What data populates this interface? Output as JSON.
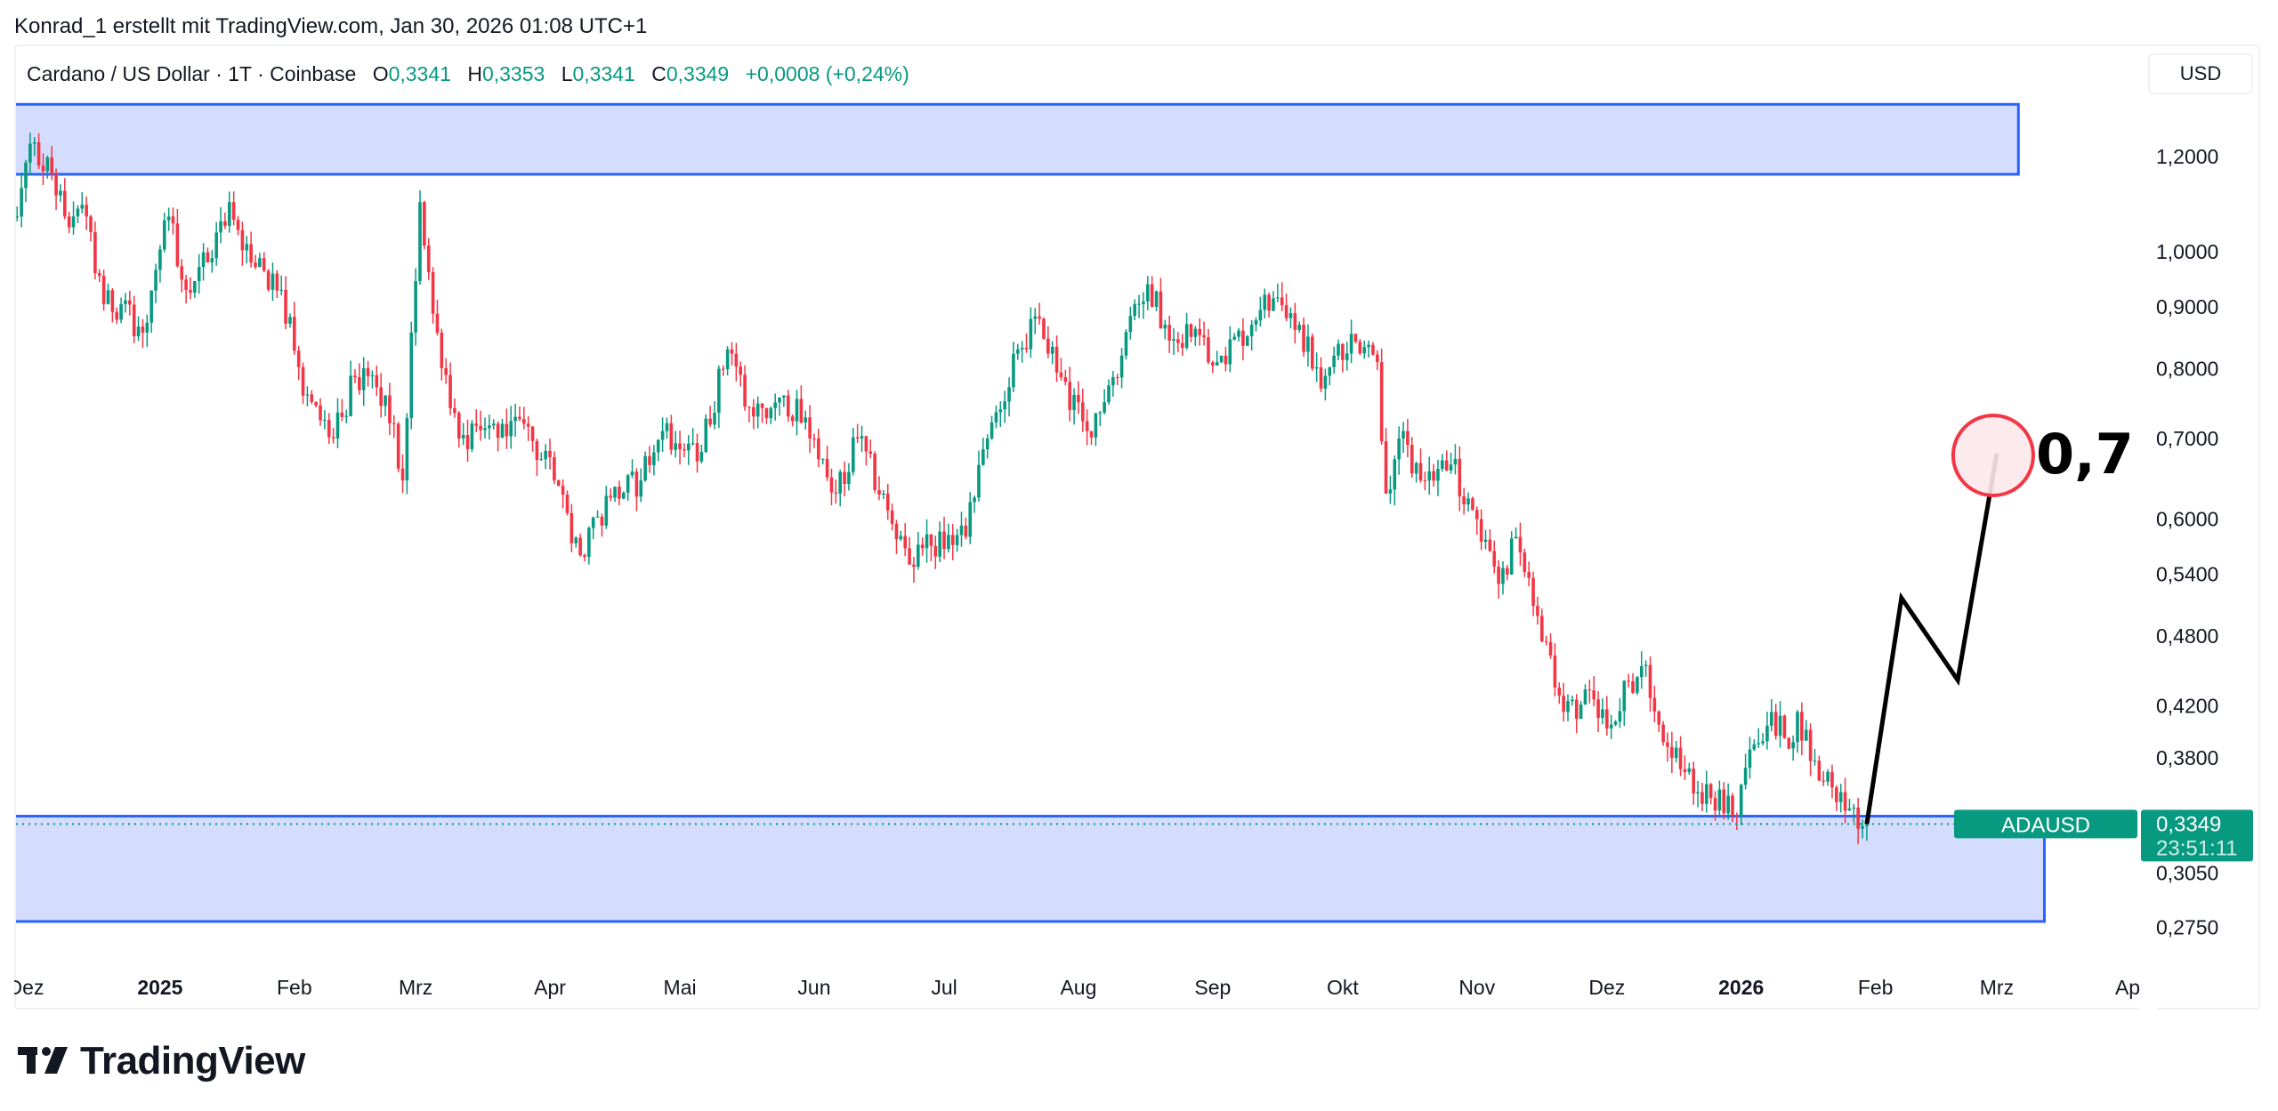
{
  "caption": "Konrad_1 erstellt mit TradingView.com, Jan 30, 2026 01:08 UTC+1",
  "legend": {
    "symbol": "Cardano / US Dollar · 1T · Coinbase",
    "o_label": "O",
    "o": "0,3341",
    "h_label": "H",
    "h": "0,3353",
    "l_label": "L",
    "l": "0,3341",
    "c_label": "C",
    "c": "0,3349",
    "change": "+0,0008 (+0,24%)"
  },
  "currency_button": "USD",
  "logo_text": "TradingView",
  "colors": {
    "up": "#089981",
    "down": "#f23645",
    "zone_fill": "#d4ddfd",
    "zone_border": "#2962ff",
    "target_circle": "#f23645",
    "target_fill": "#fde8eb",
    "path": "#000000"
  },
  "chart_data": {
    "type": "candlestick",
    "symbol": "ADAUSD",
    "interval": "1T",
    "scale": "log",
    "ylim": [
      0.265,
      1.4
    ],
    "xlim": [
      "2024-11-28",
      "2026-04-04"
    ],
    "grid": false,
    "y_ticks": [
      {
        "value": 1.2,
        "label": "1,2000"
      },
      {
        "value": 1.0,
        "label": "1,0000"
      },
      {
        "value": 0.9,
        "label": "0,9000"
      },
      {
        "value": 0.8,
        "label": "0,8000"
      },
      {
        "value": 0.7,
        "label": "0,7000"
      },
      {
        "value": 0.6,
        "label": "0,6000"
      },
      {
        "value": 0.54,
        "label": "0,5400"
      },
      {
        "value": 0.48,
        "label": "0,4800"
      },
      {
        "value": 0.42,
        "label": "0,4200"
      },
      {
        "value": 0.38,
        "label": "0,3800"
      },
      {
        "value": 0.305,
        "label": "0,3050"
      },
      {
        "value": 0.275,
        "label": "0,2750"
      }
    ],
    "x_ticks": [
      {
        "date": "2024-12-01",
        "label": "Dez",
        "bold": false
      },
      {
        "date": "2025-01-01",
        "label": "2025",
        "bold": true
      },
      {
        "date": "2025-02-01",
        "label": "Feb",
        "bold": false
      },
      {
        "date": "2025-03-01",
        "label": "Mrz",
        "bold": false
      },
      {
        "date": "2025-04-01",
        "label": "Apr",
        "bold": false
      },
      {
        "date": "2025-05-01",
        "label": "Mai",
        "bold": false
      },
      {
        "date": "2025-06-01",
        "label": "Jun",
        "bold": false
      },
      {
        "date": "2025-07-01",
        "label": "Jul",
        "bold": false
      },
      {
        "date": "2025-08-01",
        "label": "Aug",
        "bold": false
      },
      {
        "date": "2025-09-01",
        "label": "Sep",
        "bold": false
      },
      {
        "date": "2025-10-01",
        "label": "Okt",
        "bold": false
      },
      {
        "date": "2025-11-01",
        "label": "Nov",
        "bold": false
      },
      {
        "date": "2025-12-01",
        "label": "Dez",
        "bold": false
      },
      {
        "date": "2026-01-01",
        "label": "2026",
        "bold": true
      },
      {
        "date": "2026-02-01",
        "label": "Feb",
        "bold": false
      },
      {
        "date": "2026-03-01",
        "label": "Mrz",
        "bold": false
      },
      {
        "date": "2026-04-01",
        "label": "Apr",
        "bold": false
      }
    ],
    "close_path": [
      [
        "2024-11-29",
        1.07
      ],
      [
        "2024-12-02",
        1.23
      ],
      [
        "2024-12-07",
        1.16
      ],
      [
        "2024-12-10",
        1.07
      ],
      [
        "2024-12-15",
        1.07
      ],
      [
        "2024-12-19",
        0.905
      ],
      [
        "2024-12-23",
        0.905
      ],
      [
        "2024-12-28",
        0.857
      ],
      [
        "2025-01-03",
        1.07
      ],
      [
        "2025-01-07",
        0.93
      ],
      [
        "2025-01-12",
        0.98
      ],
      [
        "2025-01-17",
        1.1
      ],
      [
        "2025-01-22",
        0.98
      ],
      [
        "2025-01-29",
        0.93
      ],
      [
        "2025-02-03",
        0.76
      ],
      [
        "2025-02-10",
        0.7
      ],
      [
        "2025-02-15",
        0.787
      ],
      [
        "2025-02-22",
        0.76
      ],
      [
        "2025-02-26",
        0.646
      ],
      [
        "2025-03-02",
        1.1
      ],
      [
        "2025-03-06",
        0.857
      ],
      [
        "2025-03-11",
        0.7
      ],
      [
        "2025-03-19",
        0.72
      ],
      [
        "2025-03-26",
        0.72
      ],
      [
        "2025-04-02",
        0.646
      ],
      [
        "2025-04-08",
        0.56
      ],
      [
        "2025-04-15",
        0.625
      ],
      [
        "2025-04-22",
        0.646
      ],
      [
        "2025-04-27",
        0.71
      ],
      [
        "2025-05-05",
        0.67
      ],
      [
        "2025-05-12",
        0.83
      ],
      [
        "2025-05-18",
        0.73
      ],
      [
        "2025-05-25",
        0.76
      ],
      [
        "2025-06-01",
        0.7
      ],
      [
        "2025-06-06",
        0.63
      ],
      [
        "2025-06-11",
        0.7
      ],
      [
        "2025-06-18",
        0.61
      ],
      [
        "2025-06-23",
        0.55
      ],
      [
        "2025-06-28",
        0.57
      ],
      [
        "2025-07-06",
        0.58
      ],
      [
        "2025-07-11",
        0.7
      ],
      [
        "2025-07-18",
        0.83
      ],
      [
        "2025-07-23",
        0.88
      ],
      [
        "2025-07-28",
        0.787
      ],
      [
        "2025-08-03",
        0.71
      ],
      [
        "2025-08-09",
        0.787
      ],
      [
        "2025-08-14",
        0.905
      ],
      [
        "2025-08-17",
        0.94
      ],
      [
        "2025-08-21",
        0.87
      ],
      [
        "2025-08-27",
        0.85
      ],
      [
        "2025-09-03",
        0.82
      ],
      [
        "2025-09-10",
        0.87
      ],
      [
        "2025-09-15",
        0.915
      ],
      [
        "2025-09-21",
        0.87
      ],
      [
        "2025-09-26",
        0.77
      ],
      [
        "2025-10-03",
        0.855
      ],
      [
        "2025-10-09",
        0.81
      ],
      [
        "2025-10-11",
        0.63
      ],
      [
        "2025-10-14",
        0.7
      ],
      [
        "2025-10-20",
        0.646
      ],
      [
        "2025-10-26",
        0.666
      ],
      [
        "2025-11-01",
        0.6
      ],
      [
        "2025-11-06",
        0.53
      ],
      [
        "2025-11-10",
        0.58
      ],
      [
        "2025-11-16",
        0.475
      ],
      [
        "2025-11-21",
        0.415
      ],
      [
        "2025-11-28",
        0.425
      ],
      [
        "2025-12-02",
        0.405
      ],
      [
        "2025-12-06",
        0.44
      ],
      [
        "2025-12-10",
        0.454
      ],
      [
        "2025-12-13",
        0.405
      ],
      [
        "2025-12-18",
        0.372
      ],
      [
        "2025-12-25",
        0.352
      ],
      [
        "2025-12-31",
        0.34
      ],
      [
        "2026-01-04",
        0.39
      ],
      [
        "2026-01-08",
        0.415
      ],
      [
        "2026-01-12",
        0.387
      ],
      [
        "2026-01-14",
        0.415
      ],
      [
        "2026-01-19",
        0.364
      ],
      [
        "2026-01-24",
        0.356
      ],
      [
        "2026-01-30",
        0.3349
      ]
    ],
    "last_price": {
      "value": 0.3349,
      "label": "0,3349",
      "countdown": "23:51:11",
      "symbol_tag": "ADAUSD"
    },
    "drawings": {
      "resistance_zone": {
        "top": 1.326,
        "bottom": 1.16,
        "end": "2026-03-06"
      },
      "support_zone": {
        "top": 0.34,
        "bottom": 0.278,
        "end": "2026-03-12"
      },
      "projection_path": [
        [
          "2026-01-30",
          0.3349
        ],
        [
          "2026-02-07",
          0.516
        ],
        [
          "2026-02-20",
          0.441
        ],
        [
          "2026-03-01",
          0.68
        ]
      ],
      "target": {
        "date": "2026-03-01",
        "price": 0.68,
        "label": "0,7"
      }
    }
  }
}
